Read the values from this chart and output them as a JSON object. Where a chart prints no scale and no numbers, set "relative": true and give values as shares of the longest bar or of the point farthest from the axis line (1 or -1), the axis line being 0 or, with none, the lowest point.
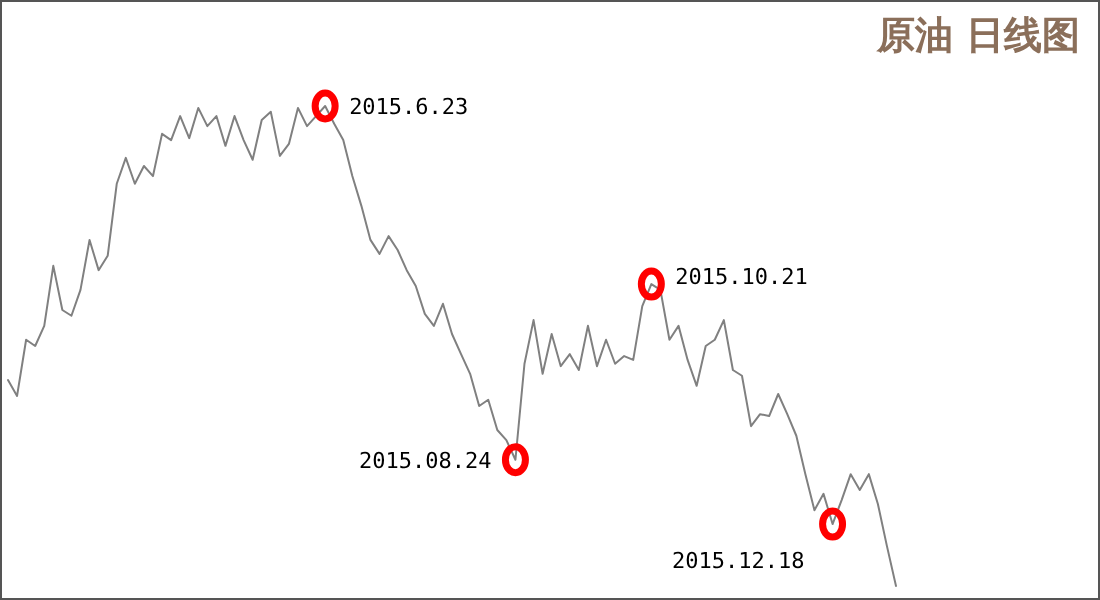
{
  "chart_data": {
    "type": "line",
    "title": "原油 日线图",
    "relative": true,
    "color": "#808080",
    "categories": [
      null,
      null,
      null,
      null,
      null,
      null,
      null,
      null,
      null,
      null,
      null,
      null,
      null,
      null,
      null,
      null,
      null,
      null,
      null,
      null,
      null,
      null,
      null,
      null,
      null,
      null,
      null,
      null,
      null,
      null,
      null,
      null,
      null,
      null,
      null,
      null,
      null,
      null,
      null,
      null,
      null,
      null,
      null,
      null,
      null,
      null,
      null,
      null,
      null,
      null,
      null,
      null,
      null,
      null,
      null,
      null,
      null,
      null,
      null,
      null,
      null,
      null,
      null,
      null,
      null,
      null,
      null,
      null,
      null,
      null,
      null,
      null,
      null,
      null,
      null,
      null,
      null,
      null,
      null,
      null,
      null,
      null,
      null,
      null,
      null,
      null,
      null,
      null,
      null,
      null,
      null,
      null,
      null,
      null,
      null,
      null,
      null,
      null,
      null
    ],
    "values": [
      0.429,
      0.396,
      0.513,
      0.5,
      0.542,
      0.667,
      0.575,
      0.563,
      0.617,
      0.721,
      0.658,
      0.688,
      0.838,
      0.892,
      0.838,
      0.875,
      0.854,
      0.942,
      0.929,
      0.979,
      0.933,
      0.996,
      0.958,
      0.979,
      0.917,
      0.979,
      0.929,
      0.888,
      0.971,
      0.988,
      0.896,
      0.921,
      0.996,
      0.958,
      0.979,
      1,
      0.963,
      0.929,
      0.854,
      0.792,
      0.721,
      0.692,
      0.729,
      0.7,
      0.658,
      0.625,
      0.567,
      0.542,
      0.588,
      0.525,
      0.483,
      0.442,
      0.375,
      0.388,
      0.325,
      0.304,
      0.263,
      0.463,
      0.554,
      0.442,
      0.525,
      0.458,
      0.483,
      0.45,
      0.542,
      0.458,
      0.513,
      0.463,
      0.479,
      0.471,
      0.583,
      0.629,
      0.617,
      0.513,
      0.542,
      0.471,
      0.417,
      0.5,
      0.513,
      0.554,
      0.45,
      0.438,
      0.333,
      0.358,
      0.354,
      0.4,
      0.358,
      0.313,
      0.233,
      0.158,
      0.192,
      0.129,
      0.179,
      0.233,
      0.2,
      0.233,
      0.171,
      0.083,
      0
    ],
    "annotations": [
      "2015.6.23",
      "2015.08.24",
      "2015.10.21",
      "2015.12.18"
    ],
    "legend": false,
    "grid": false
  }
}
